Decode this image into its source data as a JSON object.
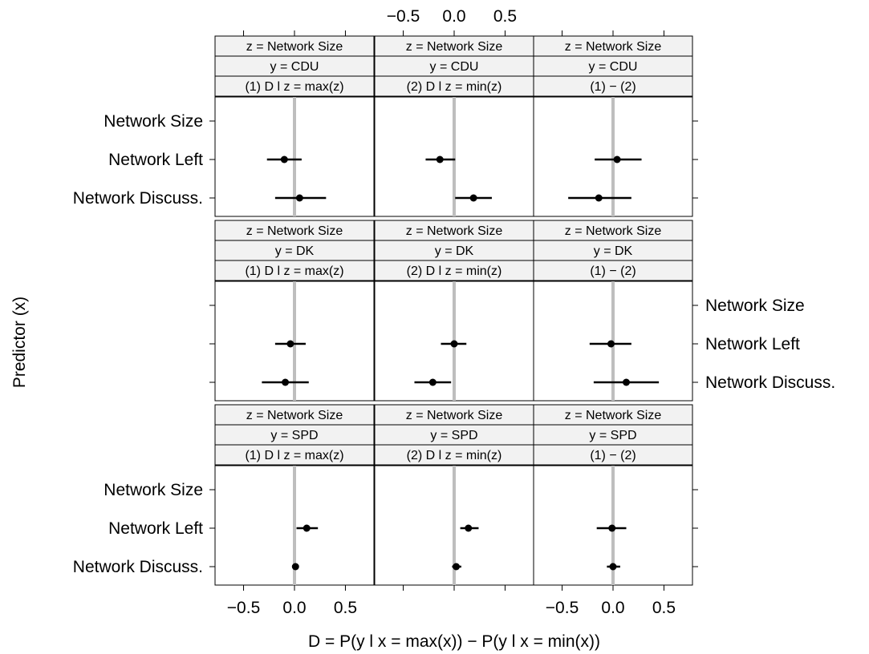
{
  "chart_data": {
    "type": "dotplot",
    "xlabel": "D = P(y l x = max(x)) − P(y l x = min(x))",
    "ylabel": "Predictor (x)",
    "xlim": [
      -0.78,
      0.78
    ],
    "x_ticks": [
      -0.5,
      0.0,
      0.5
    ],
    "x_tick_labels": [
      "−0.5",
      "0.0",
      "0.5"
    ],
    "predictors": [
      "Network Size",
      "Network Left",
      "Network Discuss."
    ],
    "columns": [
      "(1) D l z = max(z)",
      "(2) D l z = min(z)",
      "(1) − (2)"
    ],
    "z_label": "z = Network Size",
    "rows": [
      {
        "y_label": "y = CDU",
        "panels": [
          [
            null,
            {
              "est": -0.1,
              "lo": -0.27,
              "hi": 0.07
            },
            {
              "est": 0.05,
              "lo": -0.19,
              "hi": 0.31
            }
          ],
          [
            null,
            {
              "est": -0.14,
              "lo": -0.28,
              "hi": 0.01
            },
            {
              "est": 0.19,
              "lo": 0.01,
              "hi": 0.37
            }
          ],
          [
            null,
            {
              "est": 0.04,
              "lo": -0.18,
              "hi": 0.28
            },
            {
              "est": -0.14,
              "lo": -0.44,
              "hi": 0.18
            }
          ]
        ]
      },
      {
        "y_label": "y = DK",
        "panels": [
          [
            null,
            {
              "est": -0.04,
              "lo": -0.19,
              "hi": 0.11
            },
            {
              "est": -0.09,
              "lo": -0.32,
              "hi": 0.14
            }
          ],
          [
            null,
            {
              "est": 0.0,
              "lo": -0.13,
              "hi": 0.12
            },
            {
              "est": -0.21,
              "lo": -0.39,
              "hi": -0.03
            }
          ],
          [
            null,
            {
              "est": -0.02,
              "lo": -0.23,
              "hi": 0.18
            },
            {
              "est": 0.13,
              "lo": -0.19,
              "hi": 0.45
            }
          ]
        ]
      },
      {
        "y_label": "y = SPD",
        "panels": [
          [
            null,
            {
              "est": 0.12,
              "lo": 0.02,
              "hi": 0.23
            },
            {
              "est": 0.01,
              "lo": -0.02,
              "hi": 0.04
            }
          ],
          [
            null,
            {
              "est": 0.14,
              "lo": 0.06,
              "hi": 0.24
            },
            {
              "est": 0.02,
              "lo": -0.02,
              "hi": 0.07
            }
          ],
          [
            null,
            {
              "est": -0.01,
              "lo": -0.16,
              "hi": 0.13
            },
            {
              "est": 0.0,
              "lo": -0.06,
              "hi": 0.07
            }
          ]
        ]
      }
    ],
    "reference_line_x": 0.0,
    "colors": {
      "point": "#000000",
      "reference": "#bebebe",
      "strip": "#f2f2f2",
      "frame": "#000000"
    }
  }
}
